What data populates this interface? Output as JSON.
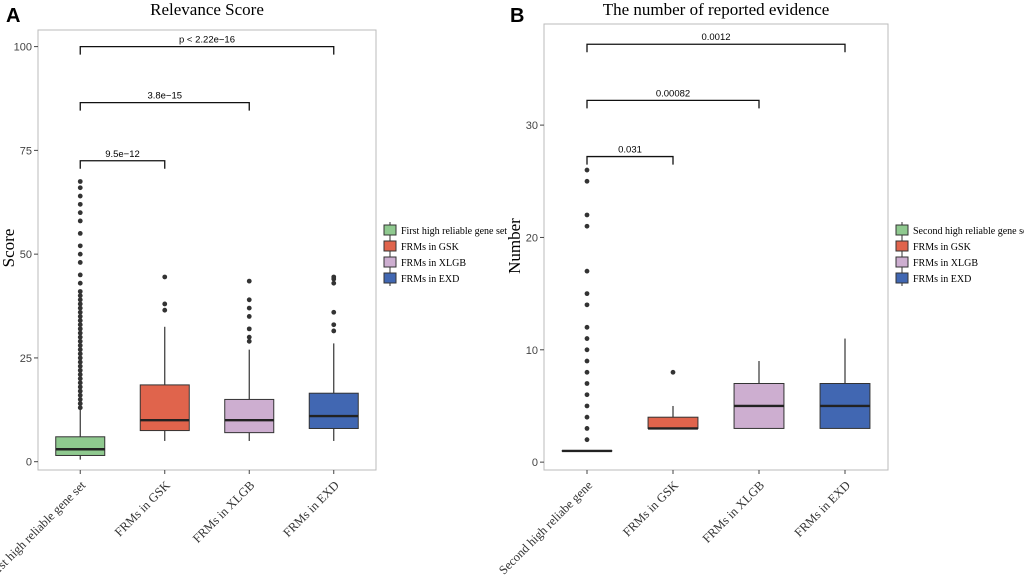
{
  "chart_data": [
    {
      "panel_label": "A",
      "type": "box",
      "title": "Relevance Score",
      "ylabel": "Score",
      "xlabel": "",
      "ylim": [
        -2,
        104
      ],
      "yticks": [
        0,
        25,
        50,
        75,
        100
      ],
      "ytick_labels": [
        "0",
        "25",
        "50",
        "75",
        "100"
      ],
      "grid": false,
      "legend_position": "right",
      "categories": [
        "First high reliable gene set",
        "FRMs in GSK",
        "FRMs in XLGB",
        "FRMs in EXD"
      ],
      "legend": [
        "First high reliable gene set",
        "FRMs in GSK",
        "FRMs in XLGB",
        "FRMs in EXD"
      ],
      "colors": [
        "#8fc98f",
        "#e0644c",
        "#cdaed0",
        "#4167b2"
      ],
      "boxes": [
        {
          "whisker_low": 0.5,
          "q1": 1.5,
          "median": 3,
          "q3": 6,
          "whisker_high": 12.5,
          "outliers": [
            13,
            14,
            15,
            16,
            17,
            18,
            19,
            20,
            21,
            22,
            23,
            24,
            25,
            26,
            27,
            28,
            29,
            30,
            31,
            32,
            33,
            34,
            35,
            36,
            37,
            38,
            39,
            40,
            41,
            43,
            45,
            48,
            50,
            52,
            55,
            58,
            60,
            62,
            64,
            66,
            67.5
          ]
        },
        {
          "whisker_low": 5,
          "q1": 7.5,
          "median": 10,
          "q3": 18.5,
          "whisker_high": 32.5,
          "outliers": [
            36.5,
            38,
            44.5
          ]
        },
        {
          "whisker_low": 5,
          "q1": 7,
          "median": 10,
          "q3": 15,
          "whisker_high": 27,
          "outliers": [
            29,
            30,
            32,
            35,
            37,
            39,
            43.5
          ]
        },
        {
          "whisker_low": 5,
          "q1": 8,
          "median": 11,
          "q3": 16.5,
          "whisker_high": 28.5,
          "outliers": [
            31.5,
            33,
            36,
            43,
            44,
            44.5
          ]
        }
      ],
      "brackets": [
        {
          "from": 0,
          "to": 1,
          "y": 72.5,
          "label": "9.5e−12"
        },
        {
          "from": 0,
          "to": 2,
          "y": 86.5,
          "label": "3.8e−15"
        },
        {
          "from": 0,
          "to": 3,
          "y": 100,
          "label": "p < 2.22e−16"
        }
      ]
    },
    {
      "panel_label": "B",
      "type": "box",
      "title": "The number of reported evidence",
      "ylabel": "Number",
      "xlabel": "",
      "ylim": [
        -0.7,
        39
      ],
      "yticks": [
        0,
        10,
        20,
        30
      ],
      "ytick_labels": [
        "0",
        "10",
        "20",
        "30"
      ],
      "grid": false,
      "legend_position": "right",
      "categories": [
        "Second high reliabe gene",
        "FRMs in GSK",
        "FRMs in XLGB",
        "FRMs in EXD"
      ],
      "legend": [
        "Second high reliable gene set",
        "FRMs in GSK",
        "FRMs in XLGB",
        "FRMs in EXD"
      ],
      "colors": [
        "#8fc98f",
        "#e0644c",
        "#cdaed0",
        "#4167b2"
      ],
      "boxes": [
        {
          "whisker_low": 1,
          "q1": 1,
          "median": 1,
          "q3": 1,
          "whisker_high": 1,
          "outliers": [
            2,
            3,
            4,
            5,
            6,
            7,
            8,
            9,
            10,
            11,
            12,
            14,
            15,
            17,
            21,
            22,
            25,
            26
          ]
        },
        {
          "whisker_low": 3,
          "q1": 3,
          "median": 3,
          "q3": 4,
          "whisker_high": 5,
          "outliers": [
            8
          ]
        },
        {
          "whisker_low": 3,
          "q1": 3,
          "median": 5,
          "q3": 7,
          "whisker_high": 9,
          "outliers": []
        },
        {
          "whisker_low": 3,
          "q1": 3,
          "median": 5,
          "q3": 7,
          "whisker_high": 11,
          "outliers": []
        }
      ],
      "brackets": [
        {
          "from": 0,
          "to": 1,
          "y": 27.2,
          "label": "0.031"
        },
        {
          "from": 0,
          "to": 2,
          "y": 32.2,
          "label": "0.00082"
        },
        {
          "from": 0,
          "to": 3,
          "y": 37.2,
          "label": "0.0012"
        }
      ]
    }
  ]
}
